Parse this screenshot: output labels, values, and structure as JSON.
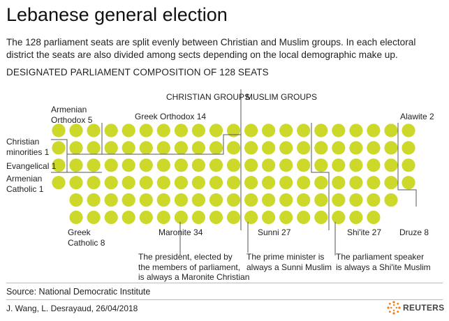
{
  "header": {
    "title": "Lebanese general election",
    "subtitle": "The 128 parliament seats are split evenly between Christian and Muslim groups. In each electoral district the seats are also divided among sects depending on the local demographic make up.",
    "composition_heading": "DESIGNATED PARLIAMENT COMPOSITION OF 128 SEATS"
  },
  "groups": {
    "christian": "CHRISTIAN GROUPS",
    "muslim": "MUSLIM GROUPS"
  },
  "sects": {
    "armenian_orthodox": {
      "line1": "Armenian",
      "line2": "Orthodox 5",
      "seats": 5
    },
    "greek_orthodox": {
      "label": "Greek Orthodox 14",
      "seats": 14
    },
    "christian_minorities": {
      "line1": "Christian",
      "line2": "minorities 1",
      "seats": 1
    },
    "evangelical": {
      "label": "Evangelical 1",
      "seats": 1
    },
    "armenian_catholic": {
      "line1": "Armenian",
      "line2": "Catholic 1",
      "seats": 1
    },
    "greek_catholic": {
      "line1": "Greek",
      "line2": "Catholic 8",
      "seats": 8
    },
    "maronite": {
      "label": "Maronite 34",
      "seats": 34
    },
    "sunni": {
      "label": "Sunni 27",
      "seats": 27
    },
    "shiite": {
      "label": "Shi'ite 27",
      "seats": 27
    },
    "druze": {
      "label": "Druze 8",
      "seats": 8
    },
    "alawite": {
      "label": "Alawite 2",
      "seats": 2
    }
  },
  "notes": {
    "president": [
      "The president, elected by",
      "the members of parliament,",
      "is always a Maronite Christian"
    ],
    "prime_minister": [
      "The prime minister is",
      "always a Sunni Muslim"
    ],
    "speaker": [
      "The parliament speaker",
      "is always a Shi'ite Muslim"
    ]
  },
  "footer": {
    "source": "Source: National Democratic Institute",
    "credit": "J. Wang, L. Desrayaud,  26/04/2018",
    "brand": "REUTERS"
  },
  "colors": {
    "seat": "#ccd92a",
    "line": "#555555",
    "accent": "#ff8000"
  }
}
